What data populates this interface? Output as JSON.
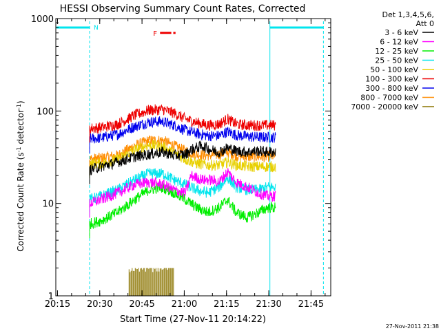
{
  "chart_data": {
    "type": "line",
    "title": "HESSI Observing Summary Count Rates, Corrected",
    "xlabel": "Start Time (27-Nov-11 20:14:22)",
    "ylabel_main": "Corrected Count Rate (s",
    "ylabel_sup1": "-1",
    "ylabel_mid": " detector",
    "ylabel_sup2": "-1",
    "ylabel_end": ")",
    "yscale": "log",
    "ylim": [
      1,
      1000
    ],
    "xlim_minutes": [
      0,
      97.6
    ],
    "x_ticks": [
      {
        "label": "20:15",
        "minutes": 0.6
      },
      {
        "label": "20:30",
        "minutes": 15.6
      },
      {
        "label": "20:45",
        "minutes": 30.6
      },
      {
        "label": "21:00",
        "minutes": 45.6
      },
      {
        "label": "21:15",
        "minutes": 60.6
      },
      {
        "label": "21:30",
        "minutes": 75.6
      },
      {
        "label": "21:45",
        "minutes": 90.6
      }
    ],
    "y_ticks": [
      {
        "label": "1",
        "value": 1
      },
      {
        "label": "10",
        "value": 10
      },
      {
        "label": "100",
        "value": 100
      },
      {
        "label": "1000",
        "value": 1000
      }
    ],
    "legend": {
      "position": "right",
      "header": [
        "Det 1,3,4,5,6,",
        "Att 0"
      ],
      "entries": [
        {
          "label": "3 - 6 keV",
          "color": "#000000"
        },
        {
          "label": "6 - 12 keV",
          "color": "#ff00ff"
        },
        {
          "label": "12 - 25 keV",
          "color": "#00ee00"
        },
        {
          "label": "25 - 50 keV",
          "color": "#00e5ee"
        },
        {
          "label": "50 - 100 keV",
          "color": "#e8d000"
        },
        {
          "label": "100 - 300 keV",
          "color": "#ee0000"
        },
        {
          "label": "300 - 800 keV",
          "color": "#0000ee"
        },
        {
          "label": "800 - 7000 keV",
          "color": "#ff8c00"
        },
        {
          "label": "7000 - 20000 keV",
          "color": "#8b7500"
        }
      ]
    },
    "data_window_minutes": [
      12.0,
      78.0
    ],
    "series": [
      {
        "name": "3 - 6 keV",
        "color": "#000000",
        "points": [
          [
            12,
            23
          ],
          [
            16,
            25
          ],
          [
            22,
            28
          ],
          [
            28,
            32
          ],
          [
            33,
            34
          ],
          [
            38,
            36
          ],
          [
            42,
            33
          ],
          [
            46,
            34
          ],
          [
            48,
            38
          ],
          [
            52,
            42
          ],
          [
            55,
            38
          ],
          [
            58,
            36
          ],
          [
            61,
            40
          ],
          [
            64,
            37
          ],
          [
            68,
            36
          ],
          [
            72,
            37
          ],
          [
            75,
            36
          ],
          [
            78,
            36
          ]
        ]
      },
      {
        "name": "6 - 12 keV",
        "color": "#ff00ff",
        "points": [
          [
            12,
            10
          ],
          [
            16,
            11
          ],
          [
            22,
            13
          ],
          [
            28,
            16
          ],
          [
            33,
            17
          ],
          [
            38,
            16
          ],
          [
            42,
            14
          ],
          [
            46,
            13
          ],
          [
            48,
            20
          ],
          [
            52,
            18
          ],
          [
            55,
            18
          ],
          [
            58,
            17
          ],
          [
            61,
            22
          ],
          [
            64,
            17
          ],
          [
            68,
            15
          ],
          [
            72,
            13
          ],
          [
            75,
            12
          ],
          [
            78,
            12
          ]
        ]
      },
      {
        "name": "12 - 25 keV",
        "color": "#00ee00",
        "points": [
          [
            12,
            6
          ],
          [
            16,
            6.5
          ],
          [
            22,
            8
          ],
          [
            28,
            11
          ],
          [
            33,
            14
          ],
          [
            38,
            15
          ],
          [
            42,
            13
          ],
          [
            46,
            11
          ],
          [
            50,
            9
          ],
          [
            54,
            8
          ],
          [
            58,
            9
          ],
          [
            61,
            11
          ],
          [
            64,
            8
          ],
          [
            68,
            7
          ],
          [
            72,
            8
          ],
          [
            75,
            9
          ],
          [
            78,
            9
          ]
        ]
      },
      {
        "name": "25 - 50 keV",
        "color": "#00e5ee",
        "points": [
          [
            12,
            11
          ],
          [
            16,
            12
          ],
          [
            22,
            14
          ],
          [
            28,
            18
          ],
          [
            33,
            21
          ],
          [
            38,
            21
          ],
          [
            42,
            18
          ],
          [
            46,
            16
          ],
          [
            50,
            14
          ],
          [
            54,
            13
          ],
          [
            58,
            15
          ],
          [
            61,
            19
          ],
          [
            64,
            15
          ],
          [
            68,
            14
          ],
          [
            72,
            14
          ],
          [
            75,
            15
          ],
          [
            78,
            15
          ]
        ]
      },
      {
        "name": "50 - 100 keV",
        "color": "#e8d000",
        "points": [
          [
            12,
            27
          ],
          [
            16,
            27
          ],
          [
            22,
            30
          ],
          [
            28,
            38
          ],
          [
            33,
            43
          ],
          [
            38,
            41
          ],
          [
            42,
            35
          ],
          [
            46,
            30
          ],
          [
            50,
            27
          ],
          [
            54,
            26
          ],
          [
            58,
            26
          ],
          [
            61,
            28
          ],
          [
            64,
            26
          ],
          [
            68,
            25
          ],
          [
            72,
            25
          ],
          [
            75,
            25
          ],
          [
            78,
            25
          ]
        ]
      },
      {
        "name": "100 - 300 keV",
        "color": "#ee0000",
        "points": [
          [
            12,
            65
          ],
          [
            16,
            66
          ],
          [
            22,
            72
          ],
          [
            28,
            90
          ],
          [
            33,
            102
          ],
          [
            38,
            104
          ],
          [
            42,
            95
          ],
          [
            46,
            82
          ],
          [
            50,
            75
          ],
          [
            54,
            70
          ],
          [
            58,
            72
          ],
          [
            61,
            82
          ],
          [
            64,
            72
          ],
          [
            68,
            70
          ],
          [
            72,
            70
          ],
          [
            75,
            70
          ],
          [
            78,
            70
          ]
        ]
      },
      {
        "name": "300 - 800 keV",
        "color": "#0000ee",
        "points": [
          [
            12,
            50
          ],
          [
            16,
            51
          ],
          [
            22,
            56
          ],
          [
            28,
            68
          ],
          [
            33,
            76
          ],
          [
            38,
            77
          ],
          [
            42,
            70
          ],
          [
            46,
            62
          ],
          [
            50,
            57
          ],
          [
            54,
            54
          ],
          [
            58,
            54
          ],
          [
            61,
            60
          ],
          [
            64,
            55
          ],
          [
            68,
            53
          ],
          [
            72,
            52
          ],
          [
            75,
            52
          ],
          [
            78,
            52
          ]
        ]
      },
      {
        "name": "800 - 7000 keV",
        "color": "#ff8c00",
        "points": [
          [
            12,
            30
          ],
          [
            16,
            31
          ],
          [
            22,
            33
          ],
          [
            28,
            42
          ],
          [
            33,
            48
          ],
          [
            38,
            48
          ],
          [
            42,
            42
          ],
          [
            46,
            37
          ],
          [
            50,
            34
          ],
          [
            54,
            33
          ],
          [
            58,
            34
          ],
          [
            61,
            36
          ],
          [
            64,
            33
          ],
          [
            68,
            32
          ],
          [
            72,
            32
          ],
          [
            75,
            32
          ],
          [
            78,
            33
          ]
        ]
      },
      {
        "name": "7000 - 20000 keV",
        "color": "#8b7500",
        "points": [
          [
            26,
            2
          ],
          [
            28,
            2
          ],
          [
            30,
            2
          ],
          [
            32,
            2
          ],
          [
            34,
            2
          ],
          [
            36,
            2
          ],
          [
            38,
            2
          ],
          [
            40,
            2
          ],
          [
            42,
            2
          ]
        ]
      }
    ],
    "annotations": {
      "night_bars": [
        {
          "from_minutes": 0.2,
          "to_minutes": 12.0,
          "value": 800
        },
        {
          "from_minutes": 76.0,
          "to_minutes": 95.0,
          "value": 800
        }
      ],
      "night_label": "N",
      "night_dashed_lines_minutes": [
        12.0,
        95.0
      ],
      "solid_line_minutes": 76.0,
      "flare_label": "F",
      "flare_from_minutes": 37.0,
      "flare_to_minutes": 42.0,
      "flare_value": 700,
      "flare_color": "#ee0000",
      "night_color": "#00e5ee"
    },
    "grid": false
  },
  "timestamp": "27-Nov-2011 21:38"
}
